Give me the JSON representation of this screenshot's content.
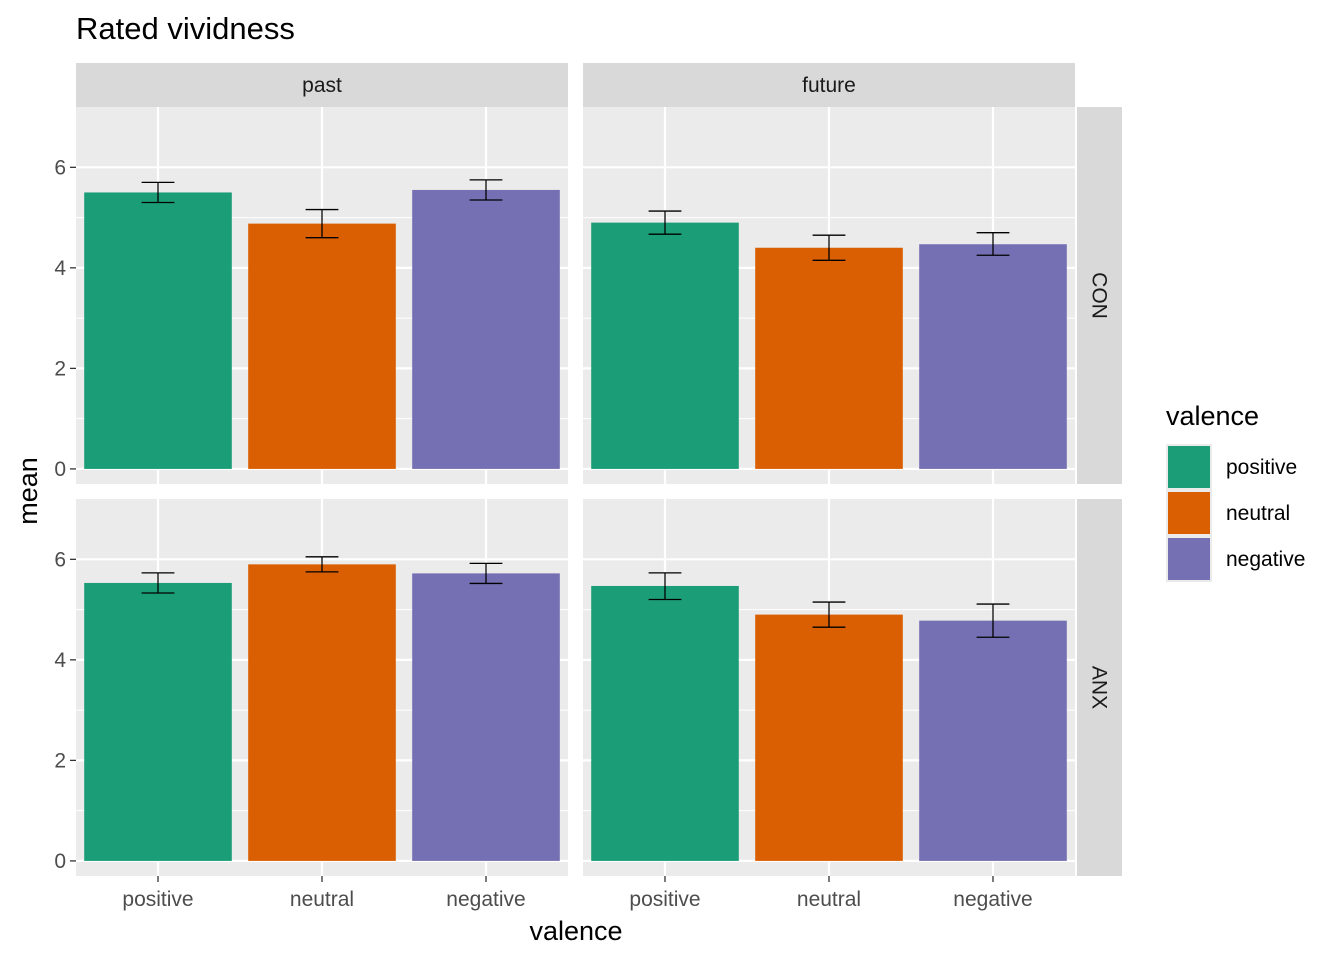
{
  "chart_data": {
    "type": "bar",
    "title": "Rated vividness",
    "xlabel": "valence",
    "ylabel": "mean",
    "ylim": [
      -0.3,
      7.2
    ],
    "yticks": [
      0,
      2,
      4,
      6
    ],
    "categories": [
      "positive",
      "neutral",
      "negative"
    ],
    "facet_columns": [
      "past",
      "future"
    ],
    "facet_rows": [
      "CON",
      "ANX"
    ],
    "grid": true,
    "legend": {
      "title": "valence",
      "position": "right",
      "entries": [
        "positive",
        "neutral",
        "negative"
      ]
    },
    "colors": {
      "positive": "#1B9E77",
      "neutral": "#D95F02",
      "negative": "#7570B3"
    },
    "panels": [
      {
        "column": "past",
        "row": "CON",
        "values": [
          5.5,
          4.88,
          5.55
        ],
        "error_low": [
          5.3,
          4.6,
          5.35
        ],
        "error_high": [
          5.7,
          5.16,
          5.75
        ]
      },
      {
        "column": "future",
        "row": "CON",
        "values": [
          4.9,
          4.4,
          4.47
        ],
        "error_low": [
          4.67,
          4.15,
          4.25
        ],
        "error_high": [
          5.13,
          4.65,
          4.7
        ]
      },
      {
        "column": "past",
        "row": "ANX",
        "values": [
          5.53,
          5.9,
          5.72
        ],
        "error_low": [
          5.33,
          5.75,
          5.52
        ],
        "error_high": [
          5.73,
          6.05,
          5.92
        ]
      },
      {
        "column": "future",
        "row": "ANX",
        "values": [
          5.47,
          4.9,
          4.78
        ],
        "error_low": [
          5.2,
          4.65,
          4.45
        ],
        "error_high": [
          5.73,
          5.15,
          5.11
        ]
      }
    ]
  }
}
